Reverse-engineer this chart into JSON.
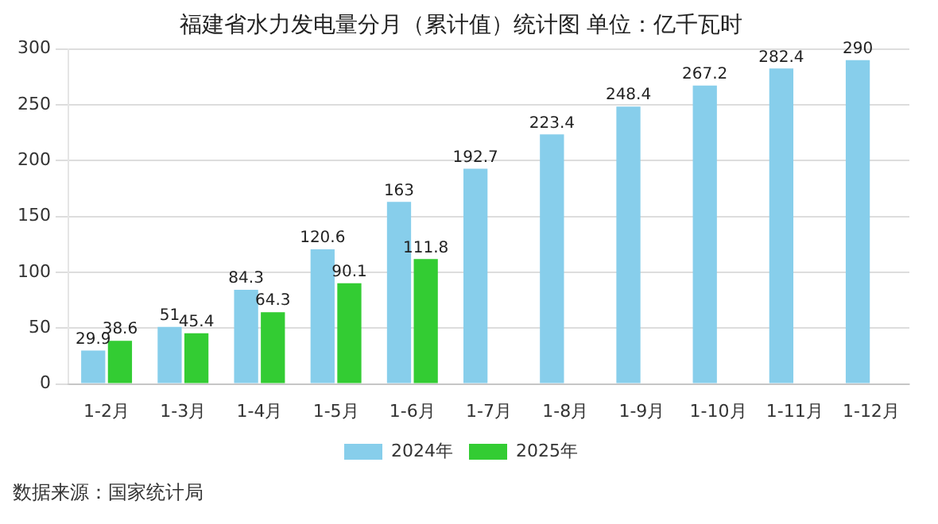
{
  "chart_data": {
    "type": "bar",
    "title": "福建省水力发电量分月（累计值）统计图 单位：亿千瓦时",
    "categories": [
      "1-2月",
      "1-3月",
      "1-4月",
      "1-5月",
      "1-6月",
      "1-7月",
      "1-8月",
      "1-9月",
      "1-10月",
      "1-11月",
      "1-12月"
    ],
    "series": [
      {
        "name": "2024年",
        "color": "#87ceeb",
        "values": [
          29.9,
          51,
          84.3,
          120.6,
          163,
          192.7,
          223.4,
          248.4,
          267.2,
          282.4,
          290
        ]
      },
      {
        "name": "2025年",
        "color": "#33cc33",
        "values": [
          38.6,
          45.4,
          64.3,
          90.1,
          111.8,
          null,
          null,
          null,
          null,
          null,
          null
        ]
      }
    ],
    "ylim": [
      0,
      300
    ],
    "yticks": [
      0,
      50,
      100,
      150,
      200,
      250,
      300
    ],
    "grid": "y",
    "legend": "bottom",
    "data_labels": true,
    "annotations": [
      "数据来源：国家统计局"
    ]
  }
}
